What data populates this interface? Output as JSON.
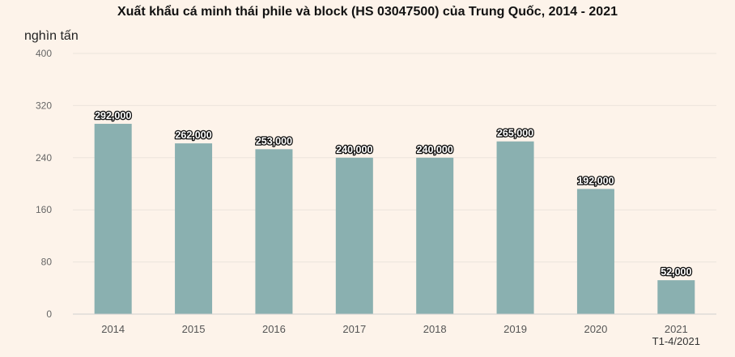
{
  "chart_data": {
    "type": "bar",
    "title": "Xuất khẩu cá minh thái phile và block (HS 03047500) của Trung Quốc, 2014 - 2021",
    "ylabel": "nghìn tấn",
    "xlabel": "",
    "categories": [
      "2014",
      "2015",
      "2016",
      "2017",
      "2018",
      "2019",
      "2020",
      "2021"
    ],
    "values": [
      292,
      262,
      253,
      240,
      240,
      265,
      192,
      52
    ],
    "data_labels": [
      "292,000",
      "262,000",
      "253,000",
      "240,000",
      "240,000",
      "265,000",
      "192,000",
      "52,000"
    ],
    "ylim": [
      0,
      400
    ],
    "yticks": [
      "0",
      "80",
      "160",
      "240",
      "320",
      "400"
    ],
    "ytick_values": [
      0,
      80,
      160,
      240,
      320,
      400
    ],
    "annotation": "T1-4/2021",
    "grid": true,
    "colors": {
      "bar": "#8ab0b0",
      "grid": "#ebe4dc",
      "axis": "#cfcfcf",
      "background": "#fdf3ea"
    }
  }
}
